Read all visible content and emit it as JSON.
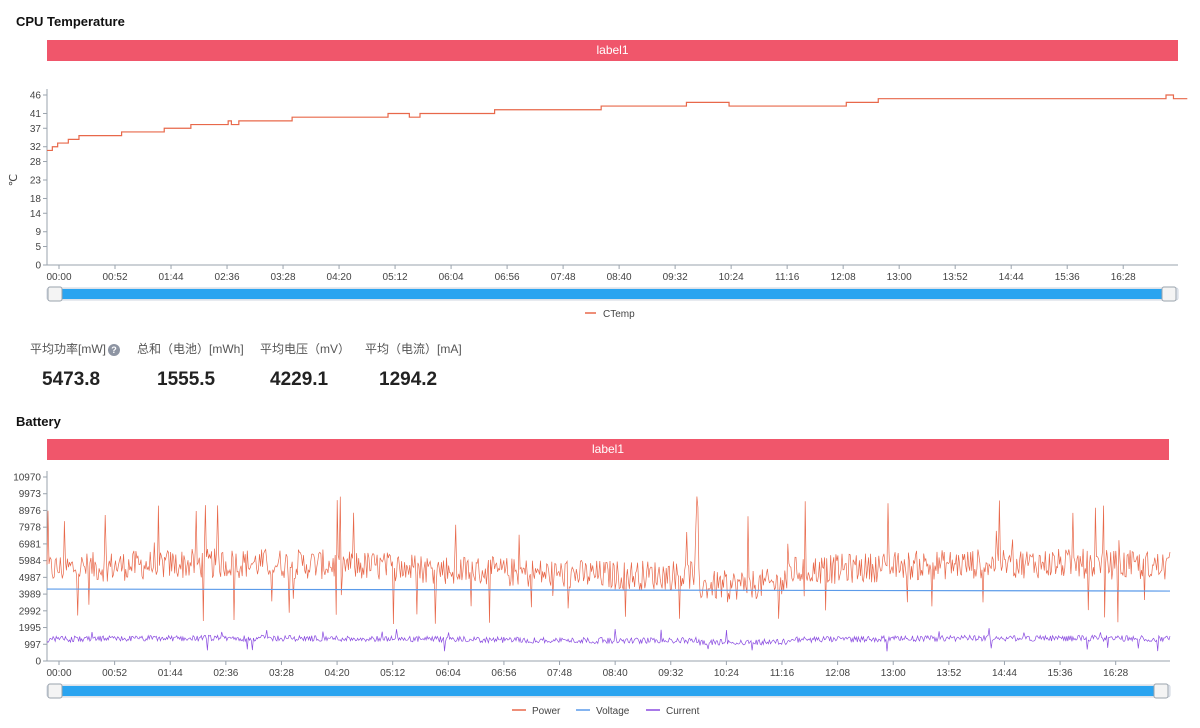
{
  "cpu_section": {
    "title": "CPU Temperature",
    "banner": "label1"
  },
  "battery_section": {
    "title": "Battery",
    "banner": "label1"
  },
  "stats": [
    {
      "label": "平均功率[mW]",
      "value": "5473.8",
      "help": true
    },
    {
      "label": "总和（电池）[mWh]",
      "value": "1555.5"
    },
    {
      "label": "平均电压（mV）",
      "value": "4229.1"
    },
    {
      "label": "平均（电流）[mA]",
      "value": "1294.2"
    }
  ],
  "chart_data": [
    {
      "type": "line",
      "ylabel": "℃",
      "ylim": [
        0,
        46
      ],
      "yticks": [
        "0",
        "5",
        "9",
        "14",
        "18",
        "23",
        "28",
        "32",
        "37",
        "41",
        "46"
      ],
      "xticks": [
        "00:00",
        "00:52",
        "01:44",
        "02:36",
        "03:28",
        "04:20",
        "05:12",
        "06:04",
        "06:56",
        "07:48",
        "08:40",
        "09:32",
        "10:24",
        "11:16",
        "12:08",
        "13:00",
        "13:52",
        "14:44",
        "15:36",
        "16:28"
      ],
      "x_minutes_range": [
        0,
        1050
      ],
      "series": [
        {
          "name": "CTemp",
          "color": "#e8684a",
          "step_points": [
            [
              0,
              31
            ],
            [
              5,
              32
            ],
            [
              10,
              33
            ],
            [
              20,
              34
            ],
            [
              30,
              35
            ],
            [
              70,
              36
            ],
            [
              110,
              37
            ],
            [
              135,
              38
            ],
            [
              140,
              38
            ],
            [
              170,
              39
            ],
            [
              173,
              38
            ],
            [
              180,
              39
            ],
            [
              200,
              39
            ],
            [
              230,
              40
            ],
            [
              310,
              40
            ],
            [
              320,
              41
            ],
            [
              340,
              40
            ],
            [
              350,
              41
            ],
            [
              420,
              42
            ],
            [
              470,
              42
            ],
            [
              520,
              43
            ],
            [
              590,
              43
            ],
            [
              600,
              44
            ],
            [
              640,
              43
            ],
            [
              700,
              43
            ],
            [
              750,
              44
            ],
            [
              780,
              45
            ],
            [
              1040,
              45
            ],
            [
              1050,
              46
            ],
            [
              1057,
              45
            ],
            [
              1070,
              45
            ]
          ]
        }
      ],
      "grid": false,
      "legend": "bottom-center"
    },
    {
      "type": "line",
      "ylim": [
        0,
        10970
      ],
      "yticks": [
        "0",
        "997",
        "1995",
        "2992",
        "3989",
        "4987",
        "5984",
        "6981",
        "7978",
        "8976",
        "9973",
        "10970"
      ],
      "xticks": [
        "00:00",
        "00:52",
        "01:44",
        "02:36",
        "03:28",
        "04:20",
        "05:12",
        "06:04",
        "06:56",
        "07:48",
        "08:40",
        "09:32",
        "10:24",
        "11:16",
        "12:08",
        "13:00",
        "13:52",
        "14:44",
        "15:36",
        "16:28"
      ],
      "x_minutes_range": [
        0,
        1050
      ],
      "series": [
        {
          "name": "Power",
          "color": "#e8684a",
          "mean": 5470,
          "spread": 900,
          "spikes_to": 9900
        },
        {
          "name": "Voltage",
          "color": "#5b9bea",
          "start": 4290,
          "end": 4170
        },
        {
          "name": "Current",
          "color": "#8a4ce0",
          "mean": 1290,
          "spread": 180
        }
      ],
      "grid": false,
      "legend": "bottom-center"
    }
  ]
}
